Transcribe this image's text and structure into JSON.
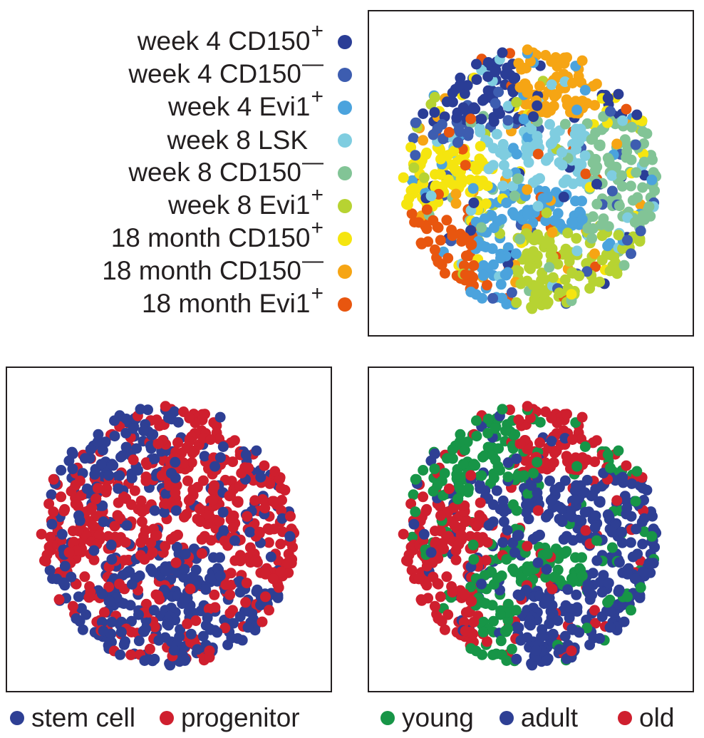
{
  "chart_data": [
    {
      "type": "scatter",
      "title": "",
      "xlabel": "",
      "ylabel": "",
      "colored_by": "sample",
      "legend": [
        {
          "name": "week 4 CD150",
          "sup": "+",
          "color": "#2a3d96"
        },
        {
          "name": "week 4 CD150",
          "sup": "—",
          "color": "#3d5db0"
        },
        {
          "name": "week 4 Evi1",
          "sup": "+",
          "color": "#4ba3dd"
        },
        {
          "name": "week 8 LSK",
          "sup": "",
          "color": "#7fcde0"
        },
        {
          "name": "week 8 CD150",
          "sup": "—",
          "color": "#82c496"
        },
        {
          "name": "week 8 Evi1",
          "sup": "+",
          "color": "#b7d332"
        },
        {
          "name": "18 month CD150",
          "sup": "+",
          "color": "#f5e50f"
        },
        {
          "name": "18 month CD150",
          "sup": "—",
          "color": "#f6a514"
        },
        {
          "name": "18 month Evi1",
          "sup": "+",
          "color": "#e8560f"
        }
      ]
    },
    {
      "type": "scatter",
      "title": "",
      "xlabel": "",
      "ylabel": "",
      "colored_by": "cell type",
      "legend": [
        {
          "name": "stem cell",
          "color": "#2e3f94"
        },
        {
          "name": "progenitor",
          "color": "#cf1f2e"
        }
      ]
    },
    {
      "type": "scatter",
      "title": "",
      "xlabel": "",
      "ylabel": "",
      "colored_by": "age",
      "legend": [
        {
          "name": "young",
          "color": "#179547"
        },
        {
          "name": "adult",
          "color": "#2e3f94"
        },
        {
          "name": "old",
          "color": "#cf1f2e"
        }
      ]
    }
  ]
}
